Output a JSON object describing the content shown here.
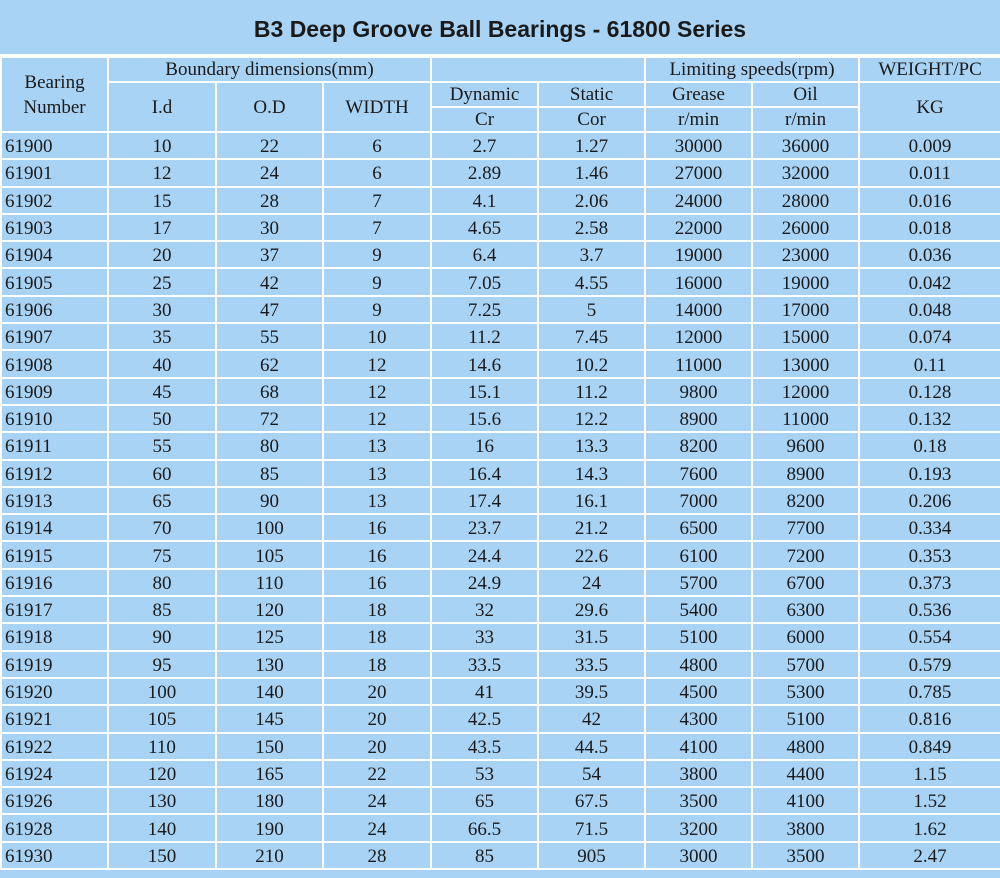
{
  "title": "B3 Deep Groove Ball Bearings - 61800 Series",
  "table": {
    "header_rows": [
      [
        "Bearing Number",
        "Boundary dimensions(mm)",
        "Limiting speeds(rpm)",
        "WEIGHT/PC"
      ],
      [
        "I.d",
        "O.D",
        "WIDTH",
        "Dynamic",
        "Static",
        "Grease",
        "Oil",
        "KG"
      ],
      [
        "Cr",
        "Cor",
        "r/min",
        "r/min"
      ]
    ],
    "rows": [
      [
        "61900",
        "10",
        "22",
        "6",
        "2.7",
        "1.27",
        "30000",
        "36000",
        "0.009"
      ],
      [
        "61901",
        "12",
        "24",
        "6",
        "2.89",
        "1.46",
        "27000",
        "32000",
        "0.011"
      ],
      [
        "61902",
        "15",
        "28",
        "7",
        "4.1",
        "2.06",
        "24000",
        "28000",
        "0.016"
      ],
      [
        "61903",
        "17",
        "30",
        "7",
        "4.65",
        "2.58",
        "22000",
        "26000",
        "0.018"
      ],
      [
        "61904",
        "20",
        "37",
        "9",
        "6.4",
        "3.7",
        "19000",
        "23000",
        "0.036"
      ],
      [
        "61905",
        "25",
        "42",
        "9",
        "7.05",
        "4.55",
        "16000",
        "19000",
        "0.042"
      ],
      [
        "61906",
        "30",
        "47",
        "9",
        "7.25",
        "5",
        "14000",
        "17000",
        "0.048"
      ],
      [
        "61907",
        "35",
        "55",
        "10",
        "11.2",
        "7.45",
        "12000",
        "15000",
        "0.074"
      ],
      [
        "61908",
        "40",
        "62",
        "12",
        "14.6",
        "10.2",
        "11000",
        "13000",
        "0.11"
      ],
      [
        "61909",
        "45",
        "68",
        "12",
        "15.1",
        "11.2",
        "9800",
        "12000",
        "0.128"
      ],
      [
        "61910",
        "50",
        "72",
        "12",
        "15.6",
        "12.2",
        "8900",
        "11000",
        "0.132"
      ],
      [
        "61911",
        "55",
        "80",
        "13",
        "16",
        "13.3",
        "8200",
        "9600",
        "0.18"
      ],
      [
        "61912",
        "60",
        "85",
        "13",
        "16.4",
        "14.3",
        "7600",
        "8900",
        "0.193"
      ],
      [
        "61913",
        "65",
        "90",
        "13",
        "17.4",
        "16.1",
        "7000",
        "8200",
        "0.206"
      ],
      [
        "61914",
        "70",
        "100",
        "16",
        "23.7",
        "21.2",
        "6500",
        "7700",
        "0.334"
      ],
      [
        "61915",
        "75",
        "105",
        "16",
        "24.4",
        "22.6",
        "6100",
        "7200",
        "0.353"
      ],
      [
        "61916",
        "80",
        "110",
        "16",
        "24.9",
        "24",
        "5700",
        "6700",
        "0.373"
      ],
      [
        "61917",
        "85",
        "120",
        "18",
        "32",
        "29.6",
        "5400",
        "6300",
        "0.536"
      ],
      [
        "61918",
        "90",
        "125",
        "18",
        "33",
        "31.5",
        "5100",
        "6000",
        "0.554"
      ],
      [
        "61919",
        "95",
        "130",
        "18",
        "33.5",
        "33.5",
        "4800",
        "5700",
        "0.579"
      ],
      [
        "61920",
        "100",
        "140",
        "20",
        "41",
        "39.5",
        "4500",
        "5300",
        "0.785"
      ],
      [
        "61921",
        "105",
        "145",
        "20",
        "42.5",
        "42",
        "4300",
        "5100",
        "0.816"
      ],
      [
        "61922",
        "110",
        "150",
        "20",
        "43.5",
        "44.5",
        "4100",
        "4800",
        "0.849"
      ],
      [
        "61924",
        "120",
        "165",
        "22",
        "53",
        "54",
        "3800",
        "4400",
        "1.15"
      ],
      [
        "61926",
        "130",
        "180",
        "24",
        "65",
        "67.5",
        "3500",
        "4100",
        "1.52"
      ],
      [
        "61928",
        "140",
        "190",
        "24",
        "66.5",
        "71.5",
        "3200",
        "3800",
        "1.62"
      ],
      [
        "61930",
        "150",
        "210",
        "28",
        "85",
        "905",
        "3000",
        "3500",
        "2.47"
      ]
    ]
  }
}
